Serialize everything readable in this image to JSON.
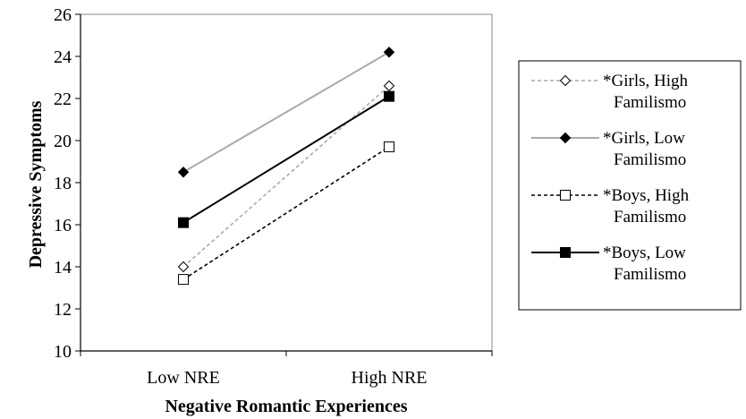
{
  "chart_data": {
    "type": "line",
    "title": "",
    "xlabel": "Negative Romantic Experiences",
    "ylabel": "Depressive Symptoms",
    "categories": [
      "Low NRE",
      "High NRE"
    ],
    "ylim": [
      10,
      26
    ],
    "yticks": [
      10,
      12,
      14,
      16,
      18,
      20,
      22,
      24,
      26
    ],
    "grid": false,
    "legend_position": "right",
    "series": [
      {
        "name": "*Girls, High Familismo",
        "legend_lines": [
          "*Girls, High",
          "Familismo"
        ],
        "values": [
          14.0,
          22.6
        ],
        "color": "#aaaaaa",
        "dash": "dashed",
        "marker": "diamond-open"
      },
      {
        "name": "*Girls, Low Familismo",
        "legend_lines": [
          "*Girls, Low",
          "Familismo"
        ],
        "values": [
          18.5,
          24.2
        ],
        "color": "#aaaaaa",
        "dash": "solid",
        "marker": "diamond-filled"
      },
      {
        "name": "*Boys, High Familismo",
        "legend_lines": [
          "*Boys, High",
          "Familismo"
        ],
        "values": [
          13.4,
          19.7
        ],
        "color": "#000000",
        "dash": "dashed",
        "marker": "square-open"
      },
      {
        "name": "*Boys, Low Familismo",
        "legend_lines": [
          "*Boys, Low",
          "Familismo"
        ],
        "values": [
          16.1,
          22.1
        ],
        "color": "#000000",
        "dash": "solid",
        "marker": "square-filled"
      }
    ]
  }
}
